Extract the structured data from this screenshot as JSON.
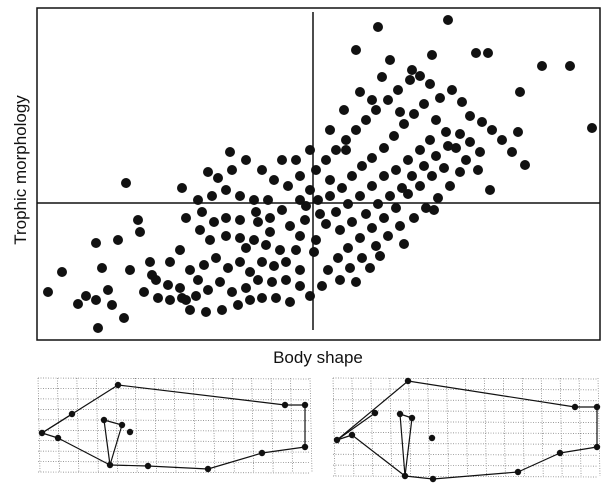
{
  "chart_data": {
    "type": "scatter",
    "x_label": "Body shape",
    "y_label": "Trophic morphology",
    "color": "#111111",
    "xlim": [
      37,
      600
    ],
    "ylim": [
      0,
      332
    ],
    "x": [
      448,
      378,
      356,
      488,
      476,
      432,
      542,
      570,
      412,
      382,
      592,
      520,
      126,
      490,
      525,
      48,
      62,
      78,
      98,
      96,
      108,
      124,
      112,
      86,
      102,
      118,
      96,
      140,
      138,
      150,
      130,
      144,
      158,
      170,
      182,
      190,
      206,
      222,
      238,
      250,
      262,
      276,
      290,
      300,
      208,
      220,
      232,
      246,
      258,
      272,
      286,
      198,
      180,
      168,
      156,
      152,
      186,
      196,
      170,
      180,
      190,
      204,
      216,
      228,
      240,
      250,
      262,
      274,
      286,
      300,
      296,
      280,
      266,
      254,
      240,
      226,
      210,
      200,
      186,
      182,
      198,
      212,
      226,
      240,
      254,
      218,
      232,
      246,
      262,
      274,
      288,
      300,
      296,
      282,
      268,
      282,
      270,
      258,
      240,
      226,
      214,
      202,
      290,
      300,
      305,
      230,
      208,
      256,
      270,
      246,
      316,
      326,
      336,
      346,
      356,
      366,
      376,
      388,
      398,
      410,
      420,
      430,
      440,
      452,
      462,
      470,
      482,
      492,
      502,
      512,
      518,
      330,
      342,
      352,
      362,
      372,
      384,
      394,
      404,
      414,
      424,
      436,
      446,
      456,
      466,
      478,
      444,
      432,
      420,
      408,
      396,
      384,
      372,
      360,
      348,
      338,
      328,
      322,
      310,
      316,
      326,
      336,
      348,
      360,
      372,
      384,
      396,
      408,
      420,
      430,
      318,
      306,
      330,
      340,
      352,
      366,
      378,
      390,
      402,
      412,
      424,
      436,
      448,
      460,
      470,
      480,
      460,
      450,
      438,
      426,
      414,
      400,
      388,
      376,
      362,
      350,
      340,
      356,
      370,
      380,
      330,
      344,
      360,
      372,
      390,
      400,
      346,
      310,
      300,
      310,
      434,
      404,
      314,
      320
    ],
    "values": [
      320,
      313,
      290,
      287,
      287,
      285,
      274,
      274,
      270,
      263,
      212,
      248,
      157,
      150,
      175,
      48,
      68,
      36,
      12,
      40,
      50,
      22,
      35,
      44,
      72,
      100,
      97,
      108,
      120,
      78,
      70,
      48,
      42,
      40,
      42,
      30,
      28,
      30,
      35,
      40,
      42,
      42,
      38,
      54,
      50,
      58,
      48,
      52,
      60,
      58,
      60,
      60,
      52,
      55,
      60,
      65,
      40,
      44,
      78,
      90,
      70,
      75,
      82,
      72,
      78,
      68,
      78,
      74,
      78,
      70,
      90,
      90,
      95,
      100,
      102,
      104,
      100,
      110,
      122,
      152,
      140,
      144,
      150,
      144,
      140,
      162,
      170,
      180,
      170,
      160,
      154,
      164,
      180,
      180,
      140,
      130,
      122,
      118,
      120,
      122,
      118,
      128,
      114,
      104,
      120,
      188,
      168,
      128,
      108,
      92,
      170,
      180,
      190,
      200,
      210,
      220,
      230,
      240,
      250,
      260,
      264,
      256,
      242,
      250,
      238,
      224,
      218,
      210,
      200,
      188,
      208,
      160,
      152,
      164,
      174,
      182,
      192,
      204,
      216,
      226,
      236,
      220,
      208,
      192,
      180,
      170,
      172,
      164,
      154,
      146,
      132,
      122,
      112,
      102,
      92,
      82,
      70,
      54,
      44,
      100,
      116,
      128,
      136,
      144,
      154,
      164,
      170,
      180,
      190,
      200,
      140,
      134,
      144,
      110,
      118,
      126,
      136,
      144,
      152,
      164,
      174,
      184,
      194,
      206,
      198,
      188,
      168,
      154,
      142,
      132,
      122,
      114,
      104,
      94,
      82,
      72,
      60,
      58,
      72,
      84,
      210,
      230,
      248,
      240,
      280,
      228,
      190,
      190,
      140,
      150,
      130,
      96,
      88,
      126
    ]
  }
}
